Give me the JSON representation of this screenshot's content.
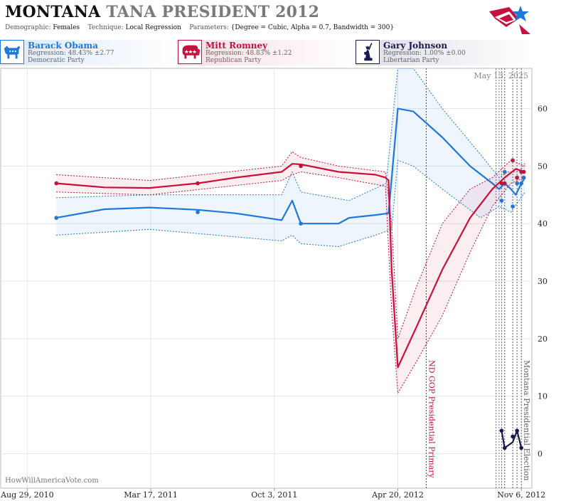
{
  "header": {
    "title_state": "MONTANA",
    "title_rest": "TANA PRESIDENT 2012",
    "demographic_label": "Demographic:",
    "demographic_value": "Females",
    "technique_label": "Technique:",
    "technique_value": "Local Regression",
    "parameters_label": "Parameters:",
    "parameters_value": "{Degree = Cubic, Alpha = 0.7, Bandwidth = 300}",
    "date_stamp": "May 13, 2025",
    "watermark": "HowWillAmericaVote.com"
  },
  "candidates": [
    {
      "name": "Barack Obama",
      "regression": "Regression: 48.43% ±2.77",
      "party": "Democratic Party",
      "color": "#1e78dc",
      "icon": "donkey-icon"
    },
    {
      "name": "Mitt Romney",
      "regression": "Regression: 48.83% ±1.22",
      "party": "Republican Party",
      "color": "#c8103c",
      "icon": "elephant-icon"
    },
    {
      "name": "Gary Johnson",
      "regression": "Regression: 1.00% ±0.00",
      "party": "Libertarian Party",
      "color": "#1a1a4e",
      "icon": "liberty-statue-icon"
    }
  ],
  "chart_data": {
    "type": "line",
    "title": "MONTANA TANA PRESIDENT 2012",
    "x_axis": {
      "type": "date",
      "range": [
        "2010-07-17",
        "2012-11-23"
      ],
      "ticks": [
        "Aug 29, 2010",
        "Mar 17, 2011",
        "Oct 3, 2011",
        "Apr 20, 2012",
        "Nov 6, 2012"
      ]
    },
    "y_axis": {
      "range": [
        -6,
        67
      ],
      "ticks": [
        0,
        10,
        20,
        30,
        40,
        50,
        60
      ],
      "position": "right"
    },
    "grid": true,
    "series": [
      {
        "name": "Barack Obama",
        "color": "#1e78dc",
        "line": [
          [
            "2010-10-15",
            41.0
          ],
          [
            "2011-01-01",
            42.5
          ],
          [
            "2011-03-15",
            42.8
          ],
          [
            "2011-06-01",
            42.4
          ],
          [
            "2011-08-01",
            41.8
          ],
          [
            "2011-10-15",
            40.6
          ],
          [
            "2011-11-01",
            44.0
          ],
          [
            "2011-11-15",
            40.0
          ],
          [
            "2012-01-15",
            40.0
          ],
          [
            "2012-02-01",
            41.0
          ],
          [
            "2012-03-15",
            41.5
          ],
          [
            "2012-04-05",
            41.8
          ],
          [
            "2012-04-20",
            60.0
          ],
          [
            "2012-05-15",
            59.5
          ],
          [
            "2012-07-01",
            55.0
          ],
          [
            "2012-08-15",
            50.0
          ],
          [
            "2012-09-20",
            47.0
          ],
          [
            "2012-10-01",
            46.0
          ],
          [
            "2012-10-10",
            47.0
          ],
          [
            "2012-10-20",
            46.0
          ],
          [
            "2012-10-28",
            45.0
          ],
          [
            "2012-11-06",
            47.0
          ],
          [
            "2012-11-12",
            48.0
          ]
        ],
        "band_upper": [
          [
            "2010-10-15",
            44.5
          ],
          [
            "2011-03-15",
            45.0
          ],
          [
            "2011-10-15",
            45.0
          ],
          [
            "2011-11-01",
            49.0
          ],
          [
            "2011-11-15",
            45.5
          ],
          [
            "2012-02-01",
            44.0
          ],
          [
            "2012-04-01",
            47.0
          ],
          [
            "2012-04-20",
            67.0
          ],
          [
            "2012-05-15",
            67.0
          ],
          [
            "2012-07-01",
            60.0
          ],
          [
            "2012-09-01",
            52.0
          ],
          [
            "2012-10-01",
            48.0
          ],
          [
            "2012-10-15",
            49.0
          ],
          [
            "2012-11-01",
            49.0
          ],
          [
            "2012-11-12",
            50.5
          ]
        ],
        "band_lower": [
          [
            "2010-10-15",
            38.0
          ],
          [
            "2011-03-15",
            39.0
          ],
          [
            "2011-10-15",
            37.0
          ],
          [
            "2011-11-01",
            38.0
          ],
          [
            "2011-11-15",
            36.5
          ],
          [
            "2012-01-15",
            36.0
          ],
          [
            "2012-03-15",
            38.0
          ],
          [
            "2012-04-10",
            39.0
          ],
          [
            "2012-04-20",
            51.0
          ],
          [
            "2012-05-15",
            50.0
          ],
          [
            "2012-07-01",
            46.0
          ],
          [
            "2012-09-01",
            41.0
          ],
          [
            "2012-10-01",
            43.0
          ],
          [
            "2012-10-20",
            42.0
          ],
          [
            "2012-11-12",
            45.5
          ]
        ],
        "points": [
          [
            "2010-10-15",
            41
          ],
          [
            "2011-06-01",
            42
          ],
          [
            "2011-11-15",
            40
          ],
          [
            "2012-10-05",
            44
          ],
          [
            "2012-10-10",
            49
          ],
          [
            "2012-10-23",
            43
          ],
          [
            "2012-10-30",
            47
          ],
          [
            "2012-11-06",
            47
          ],
          [
            "2012-11-10",
            48
          ]
        ]
      },
      {
        "name": "Mitt Romney",
        "color": "#c8103c",
        "line": [
          [
            "2010-10-15",
            47.0
          ],
          [
            "2011-01-01",
            46.3
          ],
          [
            "2011-03-15",
            46.2
          ],
          [
            "2011-06-01",
            47.0
          ],
          [
            "2011-08-01",
            48.0
          ],
          [
            "2011-10-15",
            49.0
          ],
          [
            "2011-11-01",
            50.4
          ],
          [
            "2011-11-15",
            50.3
          ],
          [
            "2012-01-15",
            49.0
          ],
          [
            "2012-03-15",
            48.5
          ],
          [
            "2012-03-31",
            48.0
          ],
          [
            "2012-04-05",
            47.5
          ],
          [
            "2012-04-10",
            32.0
          ],
          [
            "2012-04-20",
            15.0
          ],
          [
            "2012-05-20",
            22.0
          ],
          [
            "2012-07-01",
            32.0
          ],
          [
            "2012-08-15",
            41.0
          ],
          [
            "2012-09-20",
            46.0
          ],
          [
            "2012-10-10",
            48.0
          ],
          [
            "2012-10-28",
            49.5
          ],
          [
            "2012-11-12",
            49.0
          ]
        ],
        "band_upper": [
          [
            "2010-10-15",
            48.5
          ],
          [
            "2011-03-15",
            47.5
          ],
          [
            "2011-10-15",
            50.0
          ],
          [
            "2011-11-01",
            52.5
          ],
          [
            "2011-11-15",
            51.5
          ],
          [
            "2012-01-15",
            50.0
          ],
          [
            "2012-03-31",
            49.0
          ],
          [
            "2012-04-10",
            40.0
          ],
          [
            "2012-04-20",
            20.0
          ],
          [
            "2012-05-20",
            29.0
          ],
          [
            "2012-07-01",
            40.0
          ],
          [
            "2012-08-15",
            46.0
          ],
          [
            "2012-09-20",
            48.0
          ],
          [
            "2012-10-20",
            51.0
          ],
          [
            "2012-11-12",
            50.0
          ]
        ],
        "band_lower": [
          [
            "2010-10-15",
            45.5
          ],
          [
            "2011-03-15",
            45.0
          ],
          [
            "2011-10-15",
            47.5
          ],
          [
            "2011-11-01",
            48.5
          ],
          [
            "2011-11-15",
            49.0
          ],
          [
            "2012-01-15",
            48.0
          ],
          [
            "2012-03-31",
            46.5
          ],
          [
            "2012-04-10",
            25.0
          ],
          [
            "2012-04-20",
            10.5
          ],
          [
            "2012-05-20",
            16.0
          ],
          [
            "2012-07-01",
            24.0
          ],
          [
            "2012-08-15",
            35.0
          ],
          [
            "2012-09-20",
            43.0
          ],
          [
            "2012-10-20",
            47.0
          ],
          [
            "2012-11-12",
            48.0
          ]
        ],
        "points": [
          [
            "2010-10-15",
            47
          ],
          [
            "2011-06-01",
            47
          ],
          [
            "2011-11-15",
            50
          ],
          [
            "2012-10-05",
            47
          ],
          [
            "2012-10-10",
            47
          ],
          [
            "2012-10-23",
            51
          ],
          [
            "2012-10-30",
            48
          ],
          [
            "2012-11-06",
            49
          ],
          [
            "2012-11-10",
            49
          ]
        ]
      },
      {
        "name": "Gary Johnson",
        "color": "#1a1a4e",
        "line": [
          [
            "2012-10-05",
            4
          ],
          [
            "2012-10-10",
            1
          ],
          [
            "2012-10-23",
            2
          ],
          [
            "2012-10-30",
            4
          ],
          [
            "2012-11-06",
            1
          ]
        ],
        "points": [
          [
            "2012-10-05",
            4
          ],
          [
            "2012-10-10",
            1
          ],
          [
            "2012-10-23",
            3
          ],
          [
            "2012-10-30",
            4
          ],
          [
            "2012-11-06",
            1
          ]
        ]
      }
    ],
    "annotations": [
      {
        "label": "ND GOP Presidential Primary",
        "date": "2012-06-05",
        "color": "#c8103c"
      },
      {
        "label": "Montana Presidential Election",
        "date": "2012-11-06",
        "color": "#666666"
      }
    ],
    "poll_markers": [
      {
        "date": "2012-09-26",
        "color": "#c8103c"
      },
      {
        "date": "2012-10-01",
        "color": "#1e78dc"
      },
      {
        "date": "2012-10-05",
        "color": "#c8103c"
      },
      {
        "date": "2012-10-10",
        "color": "#333333"
      },
      {
        "date": "2012-10-23",
        "color": "#333333"
      },
      {
        "date": "2012-10-30",
        "color": "#333333"
      }
    ]
  }
}
